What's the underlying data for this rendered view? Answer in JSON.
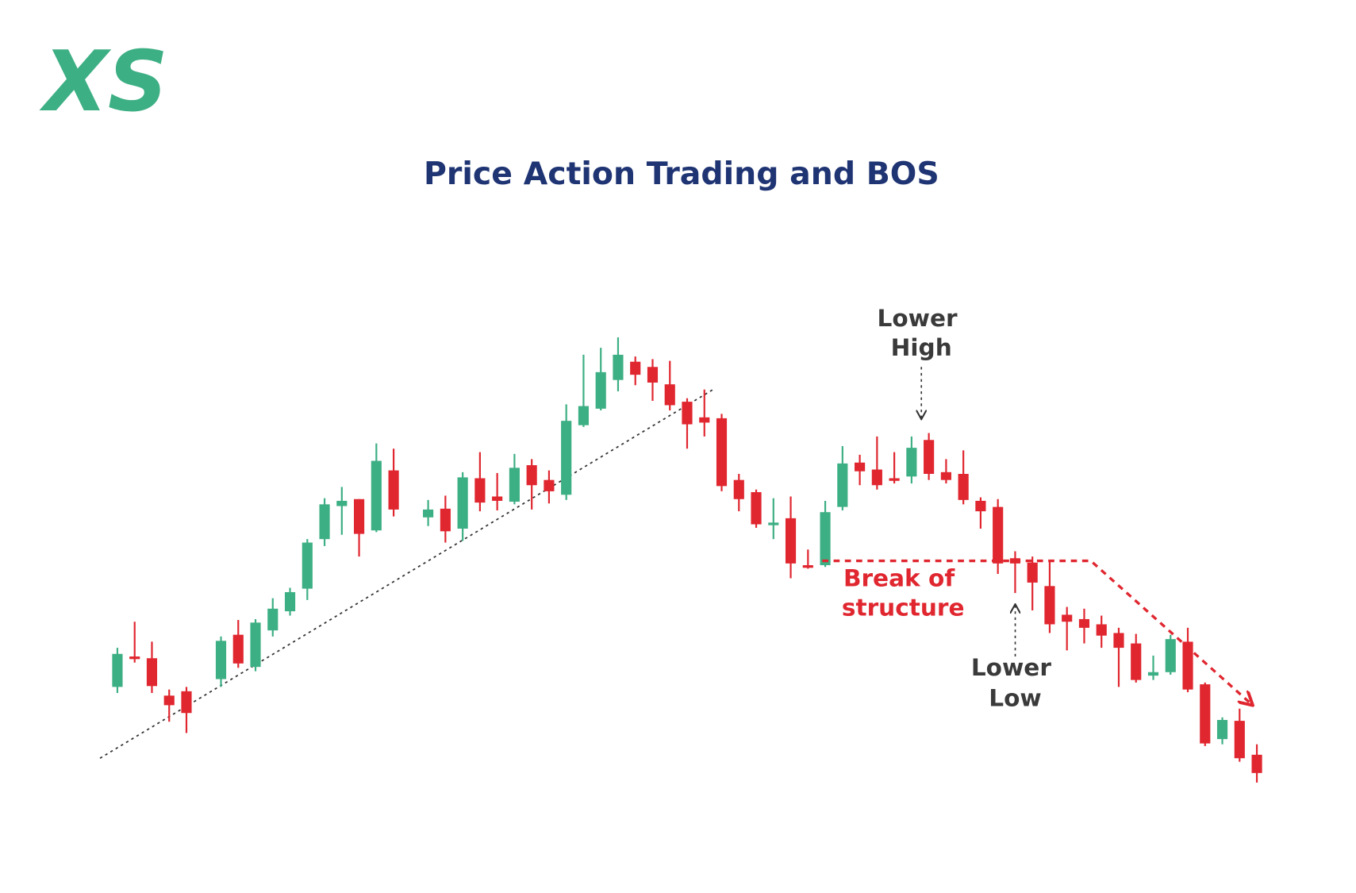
{
  "logo": "XS",
  "chart_data": {
    "type": "candlestick",
    "title": "Price Action Trading and BOS",
    "open": [
      210,
      245,
      243,
      200,
      205,
      null,
      219,
      270,
      233,
      275,
      297,
      323,
      380,
      418,
      426,
      390,
      459,
      null,
      405,
      415,
      392,
      450,
      429,
      423,
      465,
      448,
      431,
      511,
      530,
      563,
      584,
      578,
      558,
      538,
      520,
      519,
      448,
      434,
      397,
      404,
      350,
      350,
      417,
      468,
      460,
      450,
      452,
      494,
      457,
      455,
      424,
      417,
      358,
      353,
      326,
      293,
      288,
      282,
      272,
      260,
      223,
      227,
      262,
      213,
      150,
      171,
      132
    ],
    "high": [
      255,
      285,
      262,
      207,
      210,
      null,
      268,
      287,
      288,
      312,
      324,
      380,
      427,
      440,
      426,
      490,
      484,
      null,
      425,
      430,
      457,
      480,
      456,
      478,
      472,
      459,
      535,
      592,
      600,
      612,
      590,
      587,
      585,
      542,
      552,
      524,
      455,
      437,
      427,
      429,
      368,
      424,
      487,
      477,
      498,
      480,
      498,
      502,
      472,
      482,
      428,
      426,
      366,
      360,
      354,
      302,
      300,
      292,
      278,
      271,
      246,
      270,
      278,
      215,
      175,
      185,
      144
    ],
    "low": [
      203,
      238,
      203,
      170,
      157,
      null,
      210,
      232,
      228,
      268,
      292,
      310,
      372,
      385,
      360,
      388,
      406,
      null,
      395,
      376,
      378,
      412,
      413,
      420,
      414,
      421,
      425,
      509,
      528,
      550,
      557,
      539,
      528,
      484,
      498,
      435,
      412,
      393,
      380,
      335,
      346,
      348,
      413,
      442,
      437,
      444,
      444,
      448,
      444,
      420,
      392,
      340,
      318,
      298,
      272,
      252,
      260,
      255,
      210,
      215,
      218,
      224,
      204,
      142,
      144,
      124,
      100
    ],
    "close": [
      248,
      242,
      211,
      189,
      180,
      null,
      263,
      237,
      284,
      300,
      319,
      376,
      420,
      424,
      386,
      470,
      414,
      null,
      414,
      389,
      451,
      422,
      424,
      462,
      442,
      435,
      516,
      533,
      572,
      592,
      569,
      560,
      534,
      512,
      514,
      441,
      426,
      397,
      399,
      352,
      349,
      411,
      467,
      458,
      442,
      448,
      485,
      455,
      448,
      425,
      412,
      352,
      352,
      330,
      282,
      285,
      278,
      269,
      255,
      218,
      227,
      265,
      207,
      145,
      172,
      128,
      111
    ],
    "up_color": "#3daf84",
    "down_color": "#e0262f",
    "annotations": {
      "lower_high": [
        "Lower",
        "High"
      ],
      "break_of_structure": [
        "Break of",
        "structure"
      ],
      "lower_low": [
        "Lower",
        "Low"
      ]
    }
  }
}
